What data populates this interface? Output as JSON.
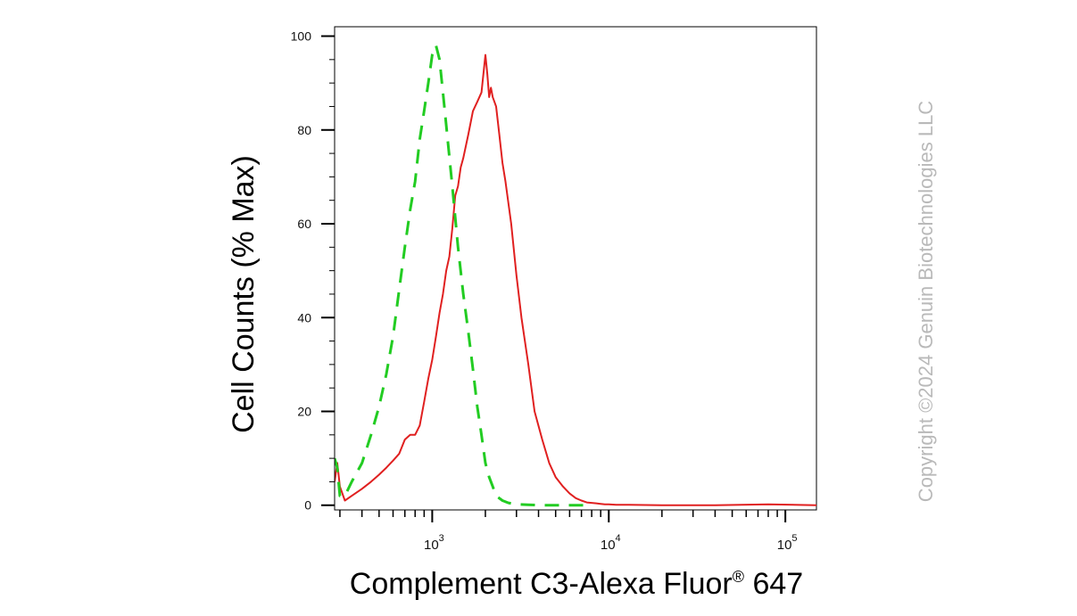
{
  "chart_data": {
    "type": "area",
    "xlabel_main": "Complement C3-Alexa Fluor",
    "xlabel_mark": "®",
    "xlabel_tail": " 647",
    "ylabel": "Cell Counts (% Max)",
    "x_scale": "log",
    "xlim": [
      280,
      150000
    ],
    "ylim": [
      -1,
      102
    ],
    "y_ticks": [
      0,
      20,
      40,
      60,
      80,
      100
    ],
    "y_tick_labels": [
      "0",
      "20",
      "40",
      "60",
      "80",
      "100"
    ],
    "x_ticks": [
      {
        "value": 1000,
        "base": "10",
        "exp": "3"
      },
      {
        "value": 10000,
        "base": "10",
        "exp": "4"
      },
      {
        "value": 100000,
        "base": "10",
        "exp": "5"
      }
    ],
    "grid": false,
    "legend": "none",
    "series": [
      {
        "style": "solid",
        "color": "#e02020",
        "x": [
          280,
          290,
          300,
          320,
          350,
          400,
          450,
          500,
          550,
          600,
          650,
          700,
          750,
          800,
          850,
          900,
          950,
          1000,
          1050,
          1100,
          1150,
          1200,
          1250,
          1300,
          1350,
          1400,
          1450,
          1500,
          1600,
          1700,
          1800,
          1900,
          2000,
          2050,
          2100,
          2150,
          2200,
          2250,
          2300,
          2400,
          2500,
          2600,
          2800,
          3000,
          3200,
          3500,
          3800,
          4200,
          4600,
          5000,
          5500,
          6000,
          6500,
          7000,
          7500,
          8000,
          8500,
          9000,
          9500,
          10000,
          11000,
          13000,
          20000,
          40000,
          80000,
          150000
        ],
        "y": [
          5,
          9,
          4,
          1,
          2,
          3.5,
          5,
          6.5,
          8,
          9.5,
          11,
          14,
          15,
          15,
          17,
          22,
          27,
          31,
          36,
          41,
          45,
          50,
          53,
          59,
          66,
          68,
          72,
          74,
          79,
          84,
          86,
          88,
          96,
          92,
          87,
          89,
          87,
          86,
          85,
          79,
          73,
          69,
          60,
          49,
          40,
          30,
          20,
          14,
          9,
          6,
          4,
          2.5,
          1.5,
          1,
          0.6,
          0.5,
          0.4,
          0.3,
          0.2,
          0.2,
          0.1,
          0.1,
          0,
          0,
          0.2,
          0
        ]
      },
      {
        "style": "dashed",
        "color": "#22cc22",
        "x": [
          280,
          290,
          300,
          320,
          350,
          400,
          450,
          500,
          550,
          600,
          650,
          700,
          750,
          800,
          850,
          900,
          950,
          1000,
          1050,
          1100,
          1150,
          1200,
          1300,
          1400,
          1500,
          1600,
          1700,
          1800,
          1900,
          2000,
          2100,
          2200,
          2300,
          2500,
          2700,
          3000,
          3500,
          4000,
          5000,
          6000,
          8000
        ],
        "y": [
          10,
          8,
          2,
          2,
          5,
          9,
          15,
          21,
          28,
          36,
          46,
          55,
          63,
          69,
          78,
          84,
          90,
          96,
          98,
          95,
          88,
          81,
          68,
          55,
          45,
          37,
          29,
          21,
          15,
          9,
          6,
          4,
          2,
          1,
          0.5,
          0.2,
          0.1,
          0,
          0,
          0,
          0
        ]
      }
    ]
  },
  "copyright": "Copyright ©2024 Genuin Biotechnologies LLC"
}
